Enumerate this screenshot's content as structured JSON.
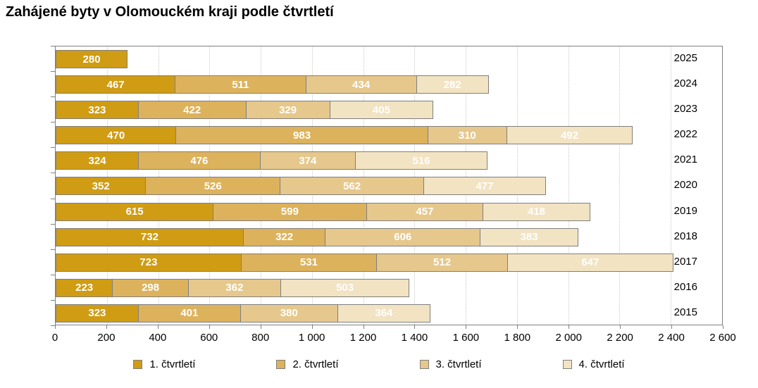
{
  "title": "Zahájené byty v Olomouckém kraji podle čtvrtletí",
  "chart_data": {
    "type": "bar",
    "orientation": "horizontal-stacked",
    "title": "Zahájené byty v Olomouckém kraji podle čtvrtletí",
    "categories": [
      "2025",
      "2024",
      "2023",
      "2022",
      "2021",
      "2020",
      "2019",
      "2018",
      "2017",
      "2016",
      "2015"
    ],
    "series": [
      {
        "name": "1. čtvrtletí",
        "color": "#d09c14",
        "values": [
          280,
          467,
          323,
          470,
          324,
          352,
          615,
          732,
          723,
          223,
          323
        ]
      },
      {
        "name": "2. čtvrtletí",
        "color": "#ddb25c",
        "values": [
          null,
          511,
          422,
          983,
          476,
          526,
          599,
          322,
          531,
          298,
          401
        ]
      },
      {
        "name": "3. čtvrtletí",
        "color": "#e6c88c",
        "values": [
          null,
          434,
          329,
          310,
          374,
          562,
          457,
          606,
          512,
          362,
          380
        ]
      },
      {
        "name": "4. čtvrtletí",
        "color": "#f2e3c2",
        "values": [
          null,
          282,
          405,
          492,
          516,
          477,
          418,
          383,
          647,
          503,
          364
        ]
      }
    ],
    "xlim": [
      0,
      2600
    ],
    "x_tick_step": 200,
    "x_ticks": [
      "0",
      "200",
      "400",
      "600",
      "800",
      "1 000",
      "1 200",
      "1 400",
      "1 600",
      "1 800",
      "2 000",
      "2 200",
      "2 400",
      "2 600"
    ],
    "grid": "vertical-dotted",
    "legend_position": "bottom",
    "value_label_color": "#ffffff",
    "bar_border_color": "#7f7f7f",
    "gridline_color": "#c9c9c9",
    "axis_color": "#808080"
  }
}
